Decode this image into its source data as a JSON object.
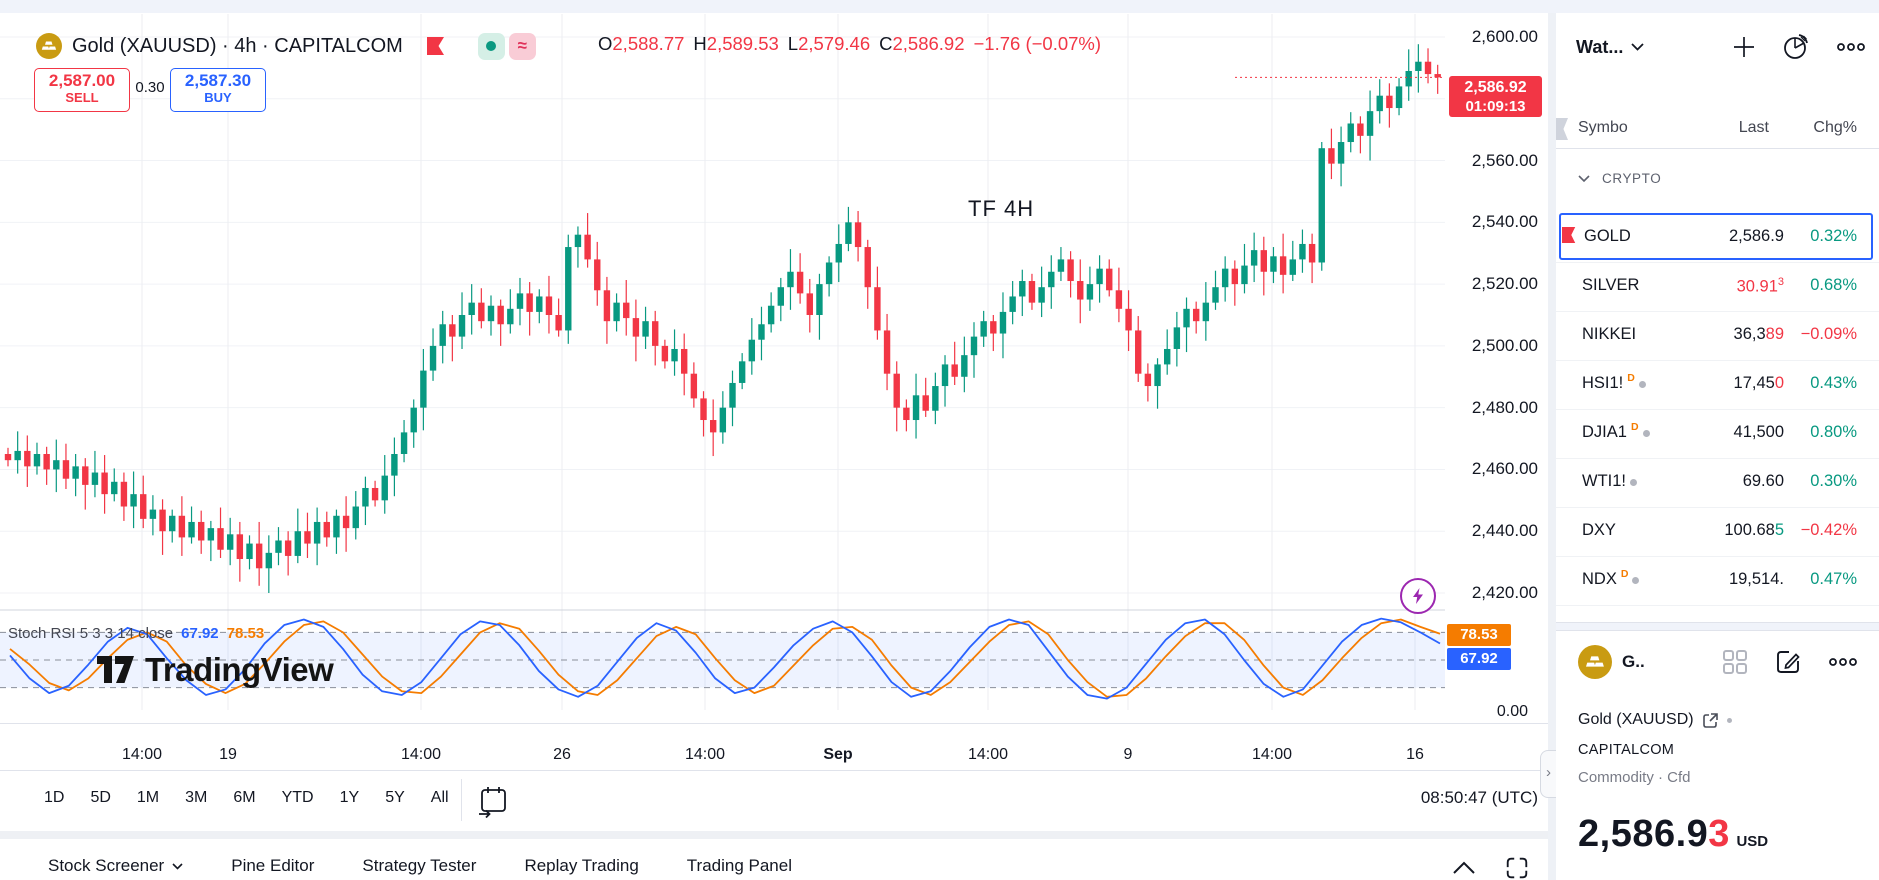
{
  "colors": {
    "up": "#089981",
    "down": "#f23645",
    "blue": "#2962ff",
    "orange": "#f57c00",
    "purple": "#9c27b0",
    "grid": "#f0f2f6",
    "grid_week": "#eceef2",
    "band_fill": "rgba(41,98,255,0.08)"
  },
  "header": {
    "title": "Gold (XAUUSD) · 4h · CAPITALCOM",
    "ohlc": {
      "o_l": "O",
      "o": "2,588.77",
      "h_l": "H",
      "h": "2,589.53",
      "l_l": "L",
      "l": "2,579.46",
      "c_l": "C",
      "c": "2,586.92",
      "chg": "−1.76 (−0.07%)"
    }
  },
  "trade": {
    "sell_price": "2,587.00",
    "sell_label": "SELL",
    "spread": "0.30",
    "buy_price": "2,587.30",
    "buy_label": "BUY"
  },
  "annotation": {
    "text": "TF 4H"
  },
  "watermark": {
    "text": "TradingView"
  },
  "axis": {
    "last_label": {
      "price": "2,586.92",
      "countdown": "01:09:13"
    },
    "stoch_d_label": "78.53",
    "stoch_k_label": "67.92",
    "zero": "0.00"
  },
  "indicator": {
    "name": "Stoch RSI 5 3 3 14 close",
    "k_value": "67.92",
    "d_value": "78.53"
  },
  "toolbar": {
    "ranges": [
      "1D",
      "5D",
      "1M",
      "3M",
      "6M",
      "YTD",
      "1Y",
      "5Y",
      "All"
    ],
    "clock": "08:50:47 (UTC)"
  },
  "bottombar": {
    "items": [
      "Stock Screener",
      "Pine Editor",
      "Strategy Tester",
      "Replay Trading",
      "Trading Panel"
    ]
  },
  "sidebar": {
    "watchlist_title": "Wat...",
    "columns": {
      "symbol": "Symbo",
      "last": "Last",
      "chg": "Chg%"
    },
    "section": "CRYPTO",
    "rows": [
      {
        "symbol": "GOLD",
        "flag": true,
        "selected": true,
        "last": [
          [
            "2,586.9",
            "base"
          ]
        ],
        "chg": "0.32%",
        "dir": "up"
      },
      {
        "symbol": "SILVER",
        "last": [
          [
            "30.91",
            "down"
          ],
          [
            "3",
            "down-sup"
          ]
        ],
        "chg": "0.68%",
        "dir": "up"
      },
      {
        "symbol": "NIKKEI",
        "last": [
          [
            "36,3",
            "base"
          ],
          [
            "89",
            "down"
          ]
        ],
        "chg": "−0.09%",
        "dir": "down"
      },
      {
        "symbol": "HSI1!",
        "sup": "D",
        "dot": true,
        "last": [
          [
            "17,45",
            "base"
          ],
          [
            "0",
            "down"
          ]
        ],
        "chg": "0.43%",
        "dir": "up"
      },
      {
        "symbol": "DJIA1",
        "sup": "D",
        "dot": true,
        "last": [
          [
            "41,500",
            "base"
          ]
        ],
        "chg": "0.80%",
        "dir": "up"
      },
      {
        "symbol": "WTI1!",
        "dot": true,
        "last": [
          [
            "69.60",
            "base"
          ]
        ],
        "chg": "0.30%",
        "dir": "up"
      },
      {
        "symbol": "DXY",
        "last": [
          [
            "100.68",
            "base"
          ],
          [
            "5",
            "up"
          ]
        ],
        "chg": "−0.42%",
        "dir": "down"
      },
      {
        "symbol": "NDX",
        "sup": "D",
        "dot": true,
        "last": [
          [
            "19,514.",
            "base"
          ]
        ],
        "chg": "0.47%",
        "dir": "up"
      }
    ],
    "info": {
      "short": "G..",
      "title": "Gold (XAUUSD)",
      "exchange": "CAPITALCOM",
      "type": "Commodity · Cfd",
      "price_main": "2,586.9",
      "price_flash": "3",
      "currency": "USD"
    }
  },
  "chart_data": {
    "type": "candlestick",
    "title": "Gold (XAUUSD) 4h CAPITALCOM",
    "last_price": 2586.92,
    "ylim": [
      2413,
      2600
    ],
    "y_ticks": [
      {
        "t": "2,600.00",
        "v": 2600
      },
      {
        "t": "2,560.00",
        "v": 2560
      },
      {
        "t": "2,540.00",
        "v": 2540
      },
      {
        "t": "2,520.00",
        "v": 2520
      },
      {
        "t": "2,500.00",
        "v": 2500
      },
      {
        "t": "2,480.00",
        "v": 2480
      },
      {
        "t": "2,460.00",
        "v": 2460
      },
      {
        "t": "2,440.00",
        "v": 2440
      },
      {
        "t": "2,420.00",
        "v": 2420
      }
    ],
    "grid_values": [
      2600,
      2580,
      2560,
      2540,
      2520,
      2500,
      2480,
      2460,
      2440,
      2420
    ],
    "x_ticks": [
      {
        "t": "14:00",
        "x": 142
      },
      {
        "t": "19",
        "x": 228
      },
      {
        "t": "14:00",
        "x": 421
      },
      {
        "t": "26",
        "x": 562
      },
      {
        "t": "14:00",
        "x": 705
      },
      {
        "t": "Sep",
        "x": 838,
        "b": 1
      },
      {
        "t": "14:00",
        "x": 988
      },
      {
        "t": "9",
        "x": 1128
      },
      {
        "t": "14:00",
        "x": 1272
      },
      {
        "t": "16",
        "x": 1415
      }
    ],
    "open_seed": 2465,
    "closes": [
      2463,
      2466,
      2461,
      2465,
      2460,
      2463,
      2457,
      2461,
      2455,
      2459,
      2452,
      2456,
      2448,
      2452,
      2444,
      2447,
      2440,
      2445,
      2438,
      2443,
      2437,
      2441,
      2434,
      2439,
      2431,
      2436,
      2428,
      2433,
      2437,
      2432,
      2440,
      2436,
      2443,
      2438,
      2445,
      2441,
      2448,
      2454,
      2450,
      2458,
      2465,
      2472,
      2480,
      2492,
      2500,
      2507,
      2503,
      2510,
      2514,
      2508,
      2513,
      2507,
      2512,
      2517,
      2511,
      2516,
      2510,
      2505,
      2532,
      2536,
      2528,
      2518,
      2508,
      2514,
      2509,
      2503,
      2508,
      2500,
      2495,
      2499,
      2491,
      2483,
      2476,
      2472,
      2480,
      2488,
      2495,
      2502,
      2507,
      2513,
      2519,
      2524,
      2517,
      2510,
      2520,
      2527,
      2533,
      2540,
      2532,
      2519,
      2505,
      2491,
      2480,
      2476,
      2484,
      2479,
      2487,
      2494,
      2490,
      2497,
      2503,
      2508,
      2504,
      2511,
      2516,
      2521,
      2514,
      2519,
      2524,
      2528,
      2521,
      2515,
      2520,
      2525,
      2518,
      2512,
      2505,
      2491,
      2487,
      2494,
      2499,
      2506,
      2512,
      2508,
      2514,
      2519,
      2525,
      2520,
      2526,
      2531,
      2524,
      2529,
      2523,
      2528,
      2533,
      2527,
      2564,
      2559,
      2566,
      2572,
      2568,
      2576,
      2581,
      2577,
      2584,
      2589,
      2592,
      2588,
      2586.92
    ],
    "indicator": {
      "name": "Stoch RSI 5 3 3 14 close",
      "bands": [
        80,
        50,
        20
      ],
      "k": [
        55,
        30,
        14,
        22,
        45,
        70,
        85,
        78,
        52,
        28,
        12,
        18,
        40,
        68,
        88,
        94,
        86,
        62,
        34,
        16,
        12,
        26,
        52,
        78,
        92,
        88,
        66,
        38,
        18,
        10,
        22,
        48,
        74,
        90,
        82,
        58,
        30,
        14,
        20,
        42,
        66,
        84,
        92,
        80,
        54,
        26,
        10,
        16,
        38,
        64,
        86,
        94,
        88,
        60,
        32,
        12,
        8,
        20,
        46,
        72,
        90,
        94,
        78,
        50,
        24,
        10,
        18,
        44,
        70,
        88,
        95,
        91,
        80,
        67.92
      ],
      "d": [
        62,
        45,
        25,
        17,
        30,
        52,
        72,
        80,
        70,
        44,
        24,
        14,
        24,
        46,
        70,
        88,
        92,
        80,
        56,
        32,
        16,
        14,
        32,
        56,
        80,
        90,
        84,
        60,
        34,
        16,
        12,
        28,
        52,
        76,
        86,
        78,
        52,
        28,
        14,
        22,
        44,
        66,
        84,
        86,
        72,
        44,
        20,
        12,
        26,
        48,
        70,
        88,
        92,
        78,
        50,
        26,
        10,
        12,
        30,
        54,
        76,
        90,
        90,
        72,
        44,
        20,
        12,
        28,
        52,
        74,
        90,
        94,
        86,
        78.53
      ]
    }
  }
}
